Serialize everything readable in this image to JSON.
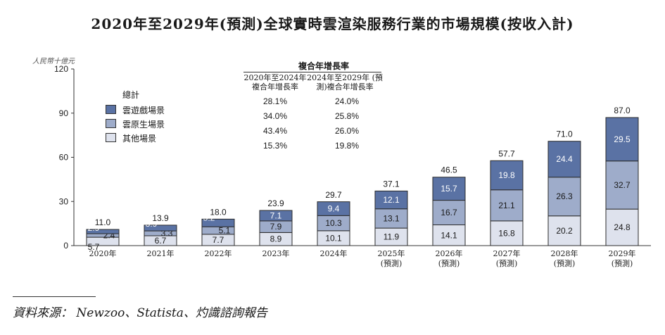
{
  "title": "2020年至2029年(預測)全球實時雲渲染服務行業的市場規模(按收入計)",
  "unit": "人民幣十億元",
  "legend": {
    "title": "總計",
    "items": [
      "雲遊戲場景",
      "雲原生場景",
      "其他場景"
    ]
  },
  "cagr": {
    "title": "複合年增長率",
    "col1": "2020年至2024年 複合年增長率",
    "col2": "2024年至2029年 (預測)複合年增長率",
    "rows": [
      [
        "28.1%",
        "24.0%"
      ],
      [
        "34.0%",
        "25.8%"
      ],
      [
        "43.4%",
        "26.0%"
      ],
      [
        "15.3%",
        "19.8%"
      ]
    ]
  },
  "source": "資料來源： Newzoo、Statista、灼識諮詢報告",
  "colors": {
    "gaming": "#5a72a4",
    "native": "#9eacca",
    "other": "#dee2ed",
    "stroke": "#2b2b2b"
  },
  "chart_data": {
    "type": "bar",
    "stacked": true,
    "categories": [
      "2020年",
      "2021年",
      "2022年",
      "2023年",
      "2024年",
      "2025年",
      "2026年",
      "2027年",
      "2028年",
      "2029年"
    ],
    "category_sub": [
      "",
      "",
      "",
      "",
      "",
      "(預測)",
      "(預測)",
      "(預測)",
      "(預測)",
      "(預測)"
    ],
    "series": [
      {
        "name": "其他場景",
        "values": [
          5.7,
          6.7,
          7.7,
          8.9,
          10.1,
          11.9,
          14.1,
          16.8,
          20.2,
          24.8
        ]
      },
      {
        "name": "雲原生場景",
        "values": [
          2.4,
          3.3,
          5.1,
          7.9,
          10.3,
          13.1,
          16.7,
          21.1,
          26.3,
          32.7
        ]
      },
      {
        "name": "雲遊戲場景",
        "values": [
          2.9,
          3.9,
          5.2,
          7.1,
          9.4,
          12.1,
          15.7,
          19.8,
          24.4,
          29.5
        ]
      }
    ],
    "totals": [
      11.0,
      13.9,
      18.0,
      23.9,
      29.7,
      37.1,
      46.5,
      57.7,
      71.0,
      87.0
    ],
    "ylim": [
      0,
      120
    ],
    "yticks": [
      0,
      30,
      60,
      90,
      120
    ]
  }
}
